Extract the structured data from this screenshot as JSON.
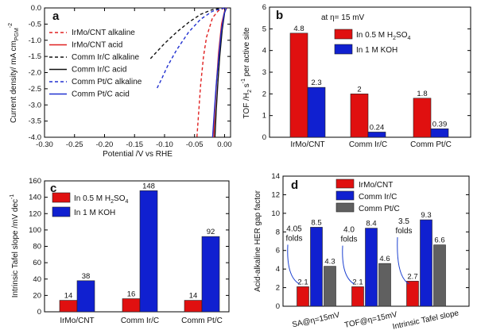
{
  "chart_data": [
    {
      "id": "a",
      "type": "line",
      "panel_label": "a",
      "xlabel": "Potential /V vs RHE",
      "ylabel": "Current density/ mA cm",
      "ylabel_sub": "PGM",
      "ylabel_sup": "-2",
      "xlim": [
        -0.3,
        0.01
      ],
      "ylim": [
        -4.0,
        0.0
      ],
      "xticks": [
        "-0.30",
        "-0.25",
        "-0.20",
        "-0.15",
        "-0.10",
        "-0.05",
        "0.00"
      ],
      "yticks": [
        "0.0",
        "-0.5",
        "-1.0",
        "-1.5",
        "-2.0",
        "-2.5",
        "-3.0",
        "-3.5",
        "-4.0"
      ],
      "legend": [
        {
          "name": "IrMo/CNT alkaline",
          "color": "#e02020",
          "dash": true
        },
        {
          "name": "IrMo/CNT acid",
          "color": "#e02020",
          "dash": false
        },
        {
          "name": "Comm Ir/C alkaline",
          "color": "#111111",
          "dash": true
        },
        {
          "name": "Comm Ir/C acid",
          "color": "#111111",
          "dash": false
        },
        {
          "name": "Comm Pt/C alkaline",
          "color": "#2030d0",
          "dash": true
        },
        {
          "name": "Comm Pt/C acid",
          "color": "#2030d0",
          "dash": false
        }
      ],
      "series": [
        {
          "name": "IrMo/CNT alkaline",
          "x": [
            0.0,
            -0.01,
            -0.02,
            -0.03,
            -0.035,
            -0.04,
            -0.043,
            -0.046
          ],
          "y": [
            0.0,
            -0.08,
            -0.3,
            -0.9,
            -1.5,
            -2.4,
            -3.2,
            -4.0
          ]
        },
        {
          "name": "IrMo/CNT acid",
          "x": [
            0.004,
            0.0,
            -0.005,
            -0.01,
            -0.013,
            -0.016,
            -0.018
          ],
          "y": [
            0.0,
            -0.1,
            -0.5,
            -1.4,
            -2.2,
            -3.1,
            -4.0
          ]
        },
        {
          "name": "Comm Ir/C alkaline",
          "x": [
            0.0,
            -0.02,
            -0.04,
            -0.06,
            -0.08,
            -0.1,
            -0.115,
            -0.125
          ],
          "y": [
            0.0,
            -0.05,
            -0.2,
            -0.45,
            -0.75,
            -1.1,
            -1.4,
            -1.6
          ]
        },
        {
          "name": "Comm Ir/C acid",
          "x": [
            0.003,
            0.0,
            -0.004,
            -0.008,
            -0.011,
            -0.014,
            -0.016
          ],
          "y": [
            0.0,
            -0.15,
            -0.7,
            -1.5,
            -2.3,
            -3.2,
            -4.0
          ]
        },
        {
          "name": "Comm Pt/C alkaline",
          "x": [
            0.0,
            -0.02,
            -0.04,
            -0.06,
            -0.08,
            -0.095,
            -0.105,
            -0.113
          ],
          "y": [
            0.0,
            -0.1,
            -0.35,
            -0.75,
            -1.3,
            -1.8,
            -2.2,
            -2.5
          ]
        },
        {
          "name": "Comm Pt/C acid",
          "x": [
            0.003,
            -0.001,
            -0.006,
            -0.01,
            -0.014,
            -0.017,
            -0.02
          ],
          "y": [
            0.0,
            -0.2,
            -0.8,
            -1.6,
            -2.4,
            -3.2,
            -4.0
          ]
        }
      ]
    },
    {
      "id": "b",
      "type": "bar",
      "panel_label": "b",
      "annotation": "at η= 15 mV",
      "ylabel": "TOF /H",
      "ylabel_sub": "2",
      "ylabel_mid": " s",
      "ylabel_sup": "-1",
      "ylabel_tail": " per active site",
      "ylim": [
        0,
        6
      ],
      "yticks": [
        "0",
        "1",
        "2",
        "3",
        "4",
        "5",
        "6"
      ],
      "categories": [
        "IrMo/CNT",
        "Comm Ir/C",
        "Comm Pt/C"
      ],
      "series": [
        {
          "name": "In 0.5 M H",
          "sub": "2",
          "tail": "SO",
          "sub2": "4",
          "color": "#e01010",
          "values": [
            4.8,
            2,
            1.8
          ],
          "labels": [
            "4.8",
            "2",
            "1.8"
          ]
        },
        {
          "name": "In 1 M KOH",
          "color": "#1020d0",
          "values": [
            2.3,
            0.24,
            0.39
          ],
          "labels": [
            "2.3",
            "0.24",
            "0.39"
          ]
        }
      ]
    },
    {
      "id": "c",
      "type": "bar",
      "panel_label": "c",
      "ylabel": "Intrinsic Tafel slope /mV dec",
      "ylabel_sup": "-1",
      "ylim": [
        0,
        160
      ],
      "yticks": [
        "0",
        "20",
        "40",
        "60",
        "80",
        "100",
        "120",
        "140",
        "160"
      ],
      "categories": [
        "IrMo/CNT",
        "Comm Ir/C",
        "Comm Pt/C"
      ],
      "series": [
        {
          "name": "In 0.5 M H",
          "sub": "2",
          "tail": "SO",
          "sub2": "4",
          "color": "#e01010",
          "values": [
            14,
            16,
            14
          ],
          "labels": [
            "14",
            "16",
            "14"
          ]
        },
        {
          "name": "In 1 M KOH",
          "color": "#1020d0",
          "values": [
            38,
            148,
            92
          ],
          "labels": [
            "38",
            "148",
            "92"
          ]
        }
      ]
    },
    {
      "id": "d",
      "type": "bar",
      "panel_label": "d",
      "ylabel": "Acid-alkaline HER gap factor",
      "ylim": [
        0,
        14
      ],
      "yticks": [
        "0",
        "2",
        "4",
        "6",
        "8",
        "10",
        "12",
        "14"
      ],
      "categories": [
        "SA@η=15mV",
        "TOF@η=15mV",
        "Intrinsic Tafel slope"
      ],
      "series": [
        {
          "name": "IrMo/CNT",
          "color": "#e01010",
          "values": [
            2.1,
            2.1,
            2.7
          ],
          "labels": [
            "2.1",
            "2.1",
            "2.7"
          ]
        },
        {
          "name": "Comm Ir/C",
          "color": "#1020d0",
          "values": [
            8.5,
            8.4,
            9.3
          ],
          "labels": [
            "8.5",
            "8.4",
            "9.3"
          ]
        },
        {
          "name": "Comm Pt/C",
          "color": "#606060",
          "values": [
            4.3,
            4.6,
            6.6
          ],
          "labels": [
            "4.3",
            "4.6",
            "6.6"
          ]
        }
      ],
      "fold_labels": [
        {
          "value": "4.05",
          "unit": "folds"
        },
        {
          "value": "4.0",
          "unit": "folds"
        },
        {
          "value": "3.5",
          "unit": "folds"
        }
      ]
    }
  ]
}
